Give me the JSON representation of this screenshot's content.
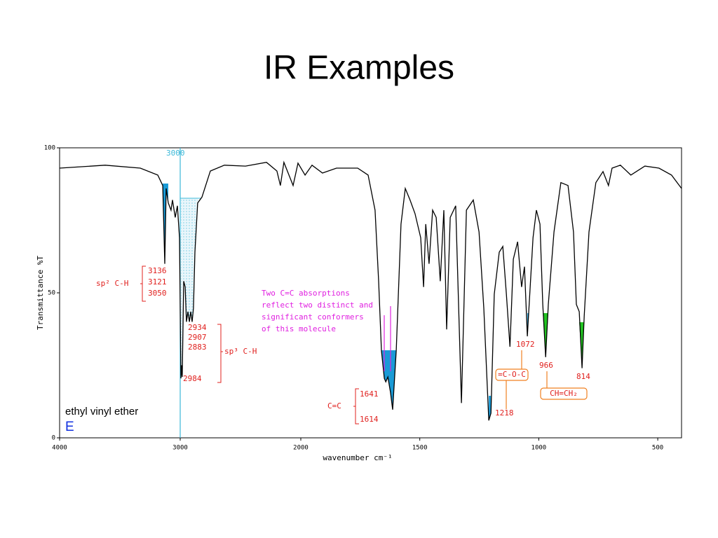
{
  "title": "IR Examples",
  "chart_data": {
    "type": "line",
    "ylabel": "Transmittance %T",
    "xlabel": "wavenumber cm⁻¹",
    "xlim": [
      4000,
      400
    ],
    "ylim": [
      0,
      100
    ],
    "x_scale_break": 2000,
    "xticks": [
      4000,
      3000,
      2000,
      1500,
      1000,
      500
    ],
    "yticks": [
      0,
      50,
      100
    ],
    "marker_line": 3000,
    "compound": "ethyl vinyl ether",
    "compound_code": "E",
    "series": [
      {
        "color": "#000000",
        "x": [
          4000,
          3622,
          3331,
          3186,
          3145,
          3128,
          3116,
          3099,
          3076,
          3064,
          3041,
          3023,
          3006,
          2994,
          2988,
          2983,
          2971,
          2959,
          2948,
          2936,
          2924,
          2913,
          2901,
          2890,
          2878,
          2855,
          2820,
          2750,
          2634,
          2459,
          2285,
          2198,
          2169,
          2140,
          2064,
          2023,
          1982,
          1953,
          1909,
          1850,
          1761,
          1717,
          1688,
          1673,
          1661,
          1649,
          1643,
          1634,
          1623,
          1614,
          1599,
          1579,
          1561,
          1541,
          1520,
          1496,
          1484,
          1475,
          1461,
          1446,
          1431,
          1414,
          1399,
          1387,
          1372,
          1349,
          1325,
          1304,
          1275,
          1251,
          1231,
          1210,
          1201,
          1187,
          1166,
          1151,
          1136,
          1121,
          1107,
          1089,
          1072,
          1060,
          1048,
          1042,
          1024,
          1010,
          995,
          983,
          971,
          960,
          936,
          907,
          877,
          854,
          842,
          830,
          818,
          809,
          789,
          760,
          730,
          707,
          692,
          657,
          613,
          554,
          495,
          442,
          400
        ],
        "values": [
          93,
          94,
          93,
          90.6,
          87,
          60,
          86,
          81,
          78.5,
          82,
          76,
          80,
          69,
          20.5,
          25,
          21,
          54,
          52,
          40,
          43.5,
          40,
          43.5,
          40,
          44.7,
          64,
          81,
          83,
          92,
          94,
          93.7,
          95,
          92,
          87,
          95,
          87,
          94.7,
          90.6,
          94,
          91.3,
          93,
          93,
          90.6,
          78.5,
          54,
          30,
          20.5,
          19.3,
          21,
          15.7,
          9.7,
          30,
          73.7,
          86,
          82,
          77.3,
          69,
          52,
          73.7,
          60,
          78.5,
          76,
          54,
          78.5,
          37.4,
          76,
          80,
          12,
          78.5,
          82,
          71,
          44.7,
          6,
          8.5,
          49.5,
          64,
          66,
          49.5,
          31.4,
          61.6,
          67.6,
          52,
          59,
          35,
          43.5,
          69,
          78.5,
          73.7,
          46,
          27.8,
          46,
          71,
          88,
          87,
          71,
          46,
          43.5,
          24,
          42,
          71,
          88,
          91.8,
          87,
          93,
          94,
          90.6,
          93.7,
          93,
          90.6,
          86
        ]
      }
    ],
    "annotations": {
      "sp2_group": {
        "label": "sp² C-H",
        "peaks": [
          "3136",
          "3121",
          "3050"
        ]
      },
      "sp3_group": {
        "label": "sp³ C-H",
        "peaks": [
          "2934",
          "2907",
          "2883",
          "2984"
        ]
      },
      "note": [
        "Two C=C absorptions",
        "reflect two distinct and",
        "significant conformers",
        "of this molecule"
      ],
      "cc_group": {
        "label": "C=C",
        "peaks": [
          "1641",
          "1614"
        ]
      },
      "coc_group": {
        "label": "=C-O-C",
        "peaks": [
          "1218",
          "1072"
        ]
      },
      "vinyl_group": {
        "label": "CH=CH₂",
        "peaks": [
          "966",
          "814"
        ]
      }
    }
  }
}
